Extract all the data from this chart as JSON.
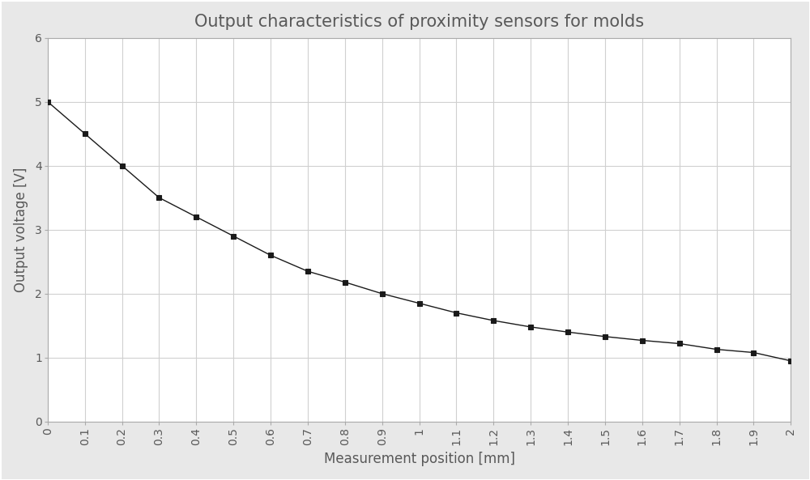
{
  "title": "Output characteristics of proximity sensors for molds",
  "xlabel": "Measurement position [mm]",
  "ylabel": "Output voltage [V]",
  "x": [
    0.0,
    0.1,
    0.2,
    0.3,
    0.4,
    0.5,
    0.6,
    0.7,
    0.8,
    0.9,
    1.0,
    1.1,
    1.2,
    1.3,
    1.4,
    1.5,
    1.6,
    1.7,
    1.8,
    1.9,
    2.0
  ],
  "y": [
    5.0,
    4.5,
    4.0,
    3.5,
    3.2,
    2.9,
    2.6,
    2.35,
    2.18,
    2.0,
    1.85,
    1.7,
    1.58,
    1.48,
    1.4,
    1.33,
    1.27,
    1.22,
    1.13,
    1.08,
    0.95
  ],
  "xlim": [
    0.0,
    2.0
  ],
  "ylim": [
    0,
    6
  ],
  "yticks": [
    0,
    1,
    2,
    3,
    4,
    5,
    6
  ],
  "xticks": [
    0.0,
    0.1,
    0.2,
    0.3,
    0.4,
    0.5,
    0.6,
    0.7,
    0.8,
    0.9,
    1.0,
    1.1,
    1.2,
    1.3,
    1.4,
    1.5,
    1.6,
    1.7,
    1.8,
    1.9,
    2.0
  ],
  "xtick_labels": [
    "0",
    "0.1",
    "0.2",
    "0.3",
    "0.4",
    "0.5",
    "0.6",
    "0.7",
    "0.8",
    "0.9",
    "1",
    "1.1",
    "1.2",
    "1.3",
    "1.4",
    "1.5",
    "1.6",
    "1.7",
    "1.8",
    "1.9",
    "2"
  ],
  "line_color": "#1a1a1a",
  "marker": "s",
  "marker_size": 4,
  "marker_color": "#1a1a1a",
  "line_width": 1.0,
  "grid_color": "#d0d0d0",
  "plot_bg_color": "#ffffff",
  "figure_bg_color": "#e8e8e8",
  "title_color": "#595959",
  "label_color": "#595959",
  "tick_color": "#595959",
  "spine_color": "#aaaaaa",
  "title_fontsize": 15,
  "axis_label_fontsize": 12,
  "tick_fontsize": 10,
  "figure_width": 10.0,
  "figure_height": 5.93,
  "dpi": 100
}
